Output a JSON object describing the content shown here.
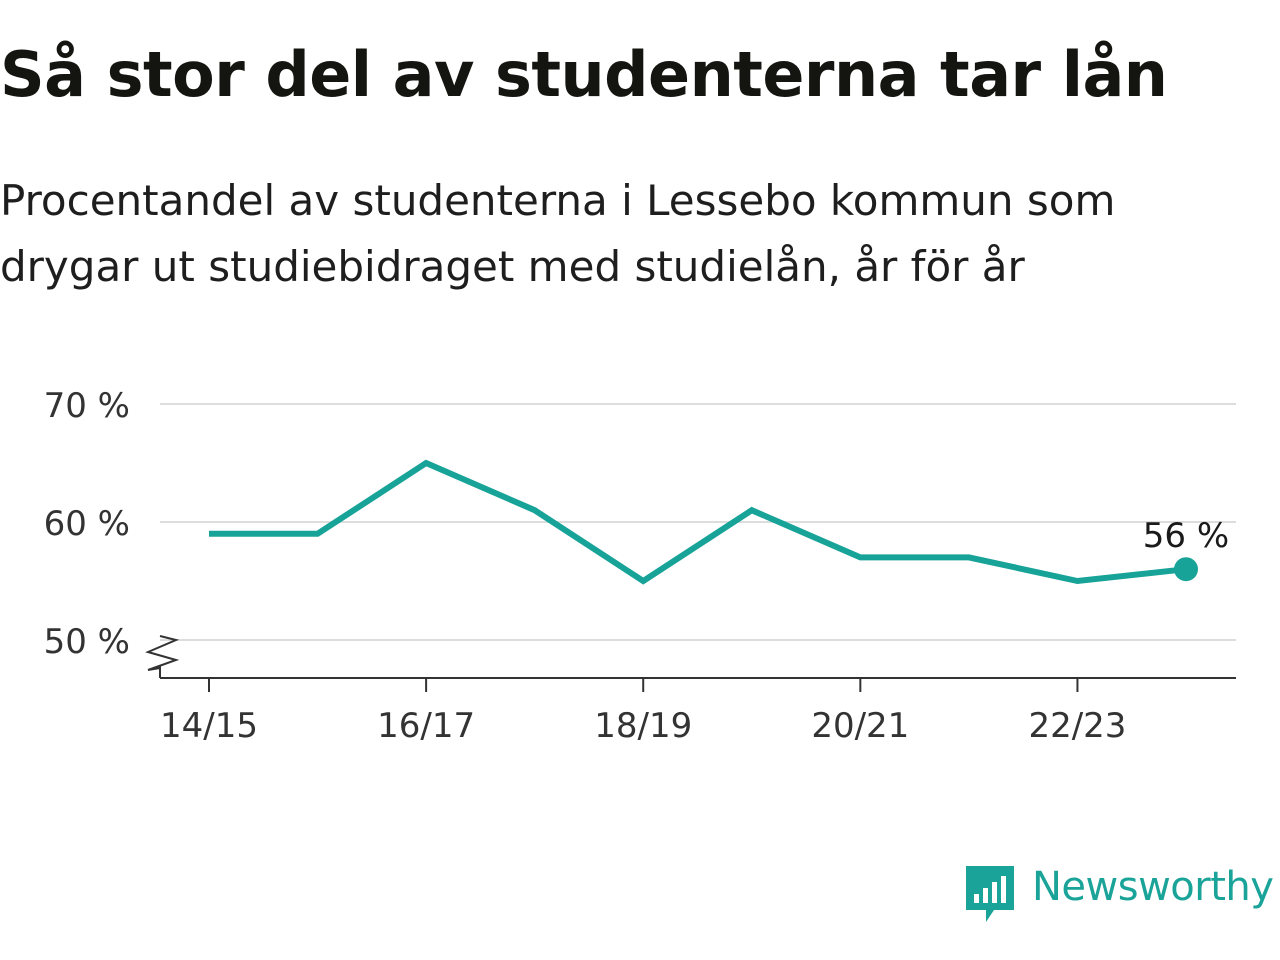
{
  "header": {
    "title": "Så stor del av studenterna tar lån",
    "subtitle": "Procentandel av studenterna i Lessebo kommun som drygar ut studiebidraget med studielån, år för år"
  },
  "chart_data": {
    "type": "line",
    "x": [
      "14/15",
      "15/16",
      "16/17",
      "17/18",
      "18/19",
      "19/20",
      "20/21",
      "21/22",
      "22/23",
      "23/24"
    ],
    "values": [
      59,
      59,
      65,
      61,
      55,
      61,
      57,
      57,
      55,
      56
    ],
    "x_tick_labels": [
      "14/15",
      "16/17",
      "18/19",
      "20/21",
      "22/23"
    ],
    "y_ticks": [
      50,
      60,
      70
    ],
    "y_tick_labels": [
      "50 %",
      "60 %",
      "70 %"
    ],
    "ylim": [
      46.7,
      70
    ],
    "y_axis_break": true,
    "grid": true,
    "end_label": "56 %",
    "line_color": "#17a398"
  },
  "brand": {
    "name": "Newsworthy",
    "icon": "newsworthy-logo-icon",
    "color": "#1aa398"
  }
}
